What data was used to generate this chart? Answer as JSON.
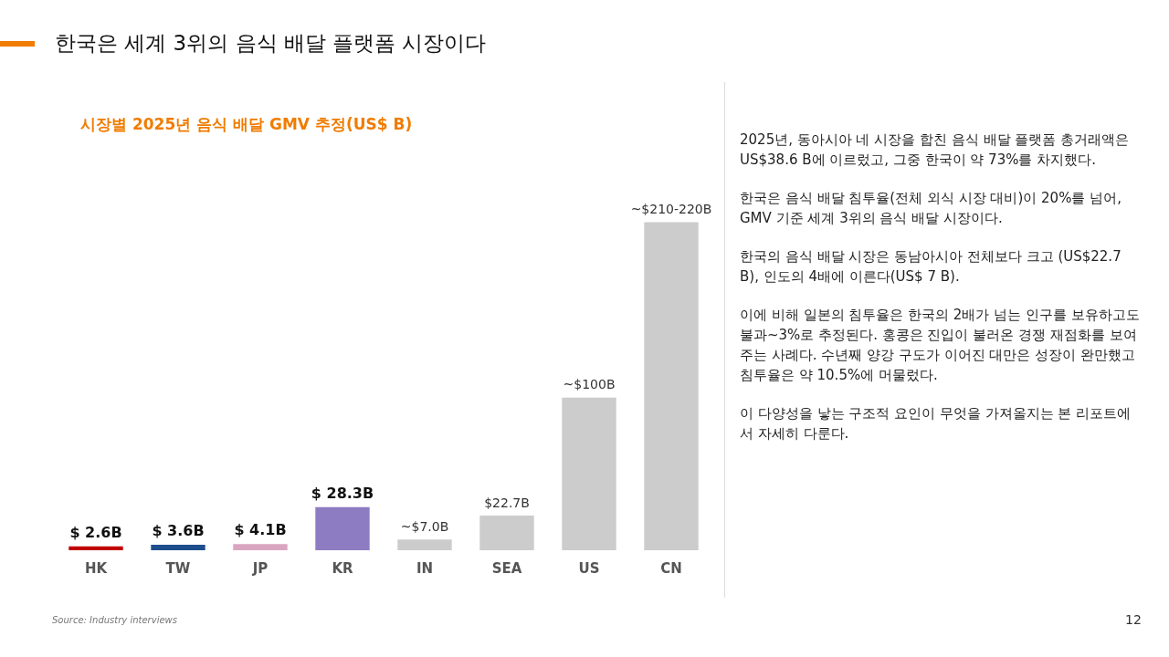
{
  "chart_data": {
    "type": "bar",
    "title": "한국은 세계 3위의 음식 배달 플랫폼 시장이다",
    "subtitle": "시장별 2025년 음식 배달 GMV 추정(US$ B)",
    "categories": [
      "HK",
      "TW",
      "JP",
      "KR",
      "IN",
      "SEA",
      "US",
      "CN"
    ],
    "values": [
      2.6,
      3.6,
      4.1,
      28.3,
      7.0,
      22.7,
      100,
      215
    ],
    "colors": [
      "#c00000",
      "#1f4e8c",
      "#d9a6c0",
      "#8e7cc3",
      "#cccccc",
      "#cccccc",
      "#cccccc",
      "#cccccc"
    ],
    "value_labels": [
      "$ 2.6B",
      "$ 3.6B",
      "$ 4.1B",
      "$ 28.3B",
      "~$7.0B",
      "$22.7B",
      "~$100B",
      "~$210-220B"
    ],
    "grid": false,
    "legend": false,
    "annotations": [
      "2025년, 동아시아 네 시장을 합친 음식 배달 플랫폼 총거래액은 US$38.6 B에 이르렀고, 그중 한국이 약 73%를 차지했다.",
      "한국은 음식 배달 침투율(전체 외식 시장 대비)이 20%를 넘어, GMV 기준 세계 3위의 음식 배달 시장이다.",
      "한국의 음식 배달 시장은 동남아시아 전체보다 크고 (US$22.7 B), 인도의 4배에 이른다(US$ 7 B).",
      "이에 비해 일본의 침투율은 한국의 2배가 넘는 인구를 보유하고도 불과~3%로 추정된다. 홍콩은 진입이 불러온 경쟁 재점화를 보여주는 사례다. 수년째 양강 구도가 이어진 대만은 성장이 완만했고 침투율은 약 10.5%에 머물렀다.",
      "이 다양성을 낳는 구조적 요인이 무엇을 가져올지는 본 리포트에서 자세히 다룬다.",
      "Source: Industry interviews",
      "12"
    ]
  }
}
